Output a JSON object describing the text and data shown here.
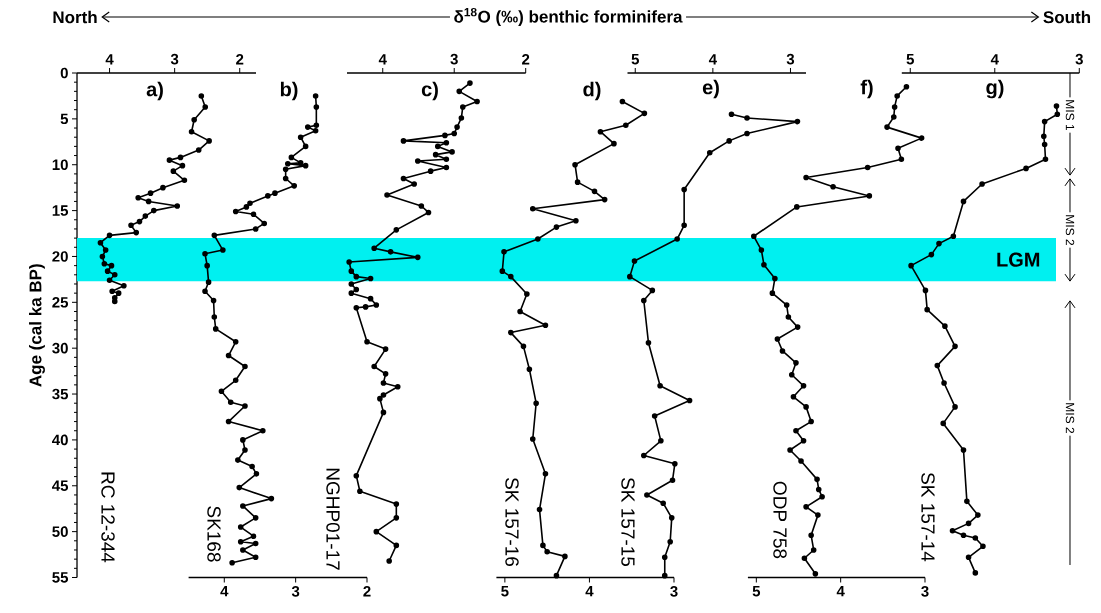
{
  "chart_data": [
    {
      "type": "line",
      "title": "a)",
      "annotations": [
        "δ$^{18}$O (‰) benthic forminifera",
        "North",
        "South"
      ],
      "ylabel": "Age (cal ka BP)",
      "xlim": [
        4.5,
        1.75
      ],
      "xticks": [
        4,
        3,
        2
      ],
      "ylim": [
        55,
        0
      ],
      "yticks": [
        0,
        5,
        10,
        15,
        20,
        25,
        30,
        35,
        40,
        45,
        50,
        55
      ],
      "marker": "circle",
      "line_style": "solid",
      "bands": [
        {
          "axis": "y",
          "from": 18,
          "to": 22.7,
          "label": "LGM",
          "color": "#00f0f0"
        }
      ],
      "series": [
        {
          "name": "RC 12-344",
          "color": "#000000",
          "x": [
            2.59,
            2.53,
            2.7,
            2.74,
            2.47,
            2.63,
            2.91,
            3.08,
            2.88,
            3.02,
            2.85,
            3.18,
            3.37,
            3.56,
            3.4,
            2.96,
            3.32,
            3.45,
            3.54,
            3.67,
            3.59,
            4.0,
            4.14,
            4.06,
            4.11,
            4.08,
            3.97,
            4.03,
            3.92,
            4.0,
            3.78,
            3.96,
            3.86,
            3.92,
            3.92
          ],
          "values": [
            2.5,
            3.7,
            5.1,
            6.4,
            7.4,
            8.4,
            9.2,
            9.5,
            10.1,
            10.7,
            11.7,
            12.5,
            13.1,
            13.6,
            14.0,
            14.5,
            15.0,
            15.6,
            16.2,
            16.6,
            17.4,
            17.7,
            18.5,
            19.3,
            20.0,
            20.8,
            21.0,
            21.6,
            22.0,
            22.6,
            23.2,
            23.8,
            24.0,
            24.5,
            24.9
          ]
        }
      ]
    },
    {
      "type": "line",
      "title": "b)",
      "xlim": [
        4.5,
        2
      ],
      "xticks": [
        4,
        3,
        2
      ],
      "ylim": [
        55,
        0
      ],
      "tick_labels": "x",
      "marker": "circle",
      "line_style": "solid",
      "series": [
        {
          "name": "SK168",
          "color": "#000000",
          "x": [
            2.72,
            2.71,
            2.71,
            2.83,
            2.72,
            2.93,
            2.86,
            3.06,
            2.93,
            3.11,
            2.86,
            3.14,
            3.14,
            3.02,
            3.29,
            3.39,
            3.64,
            3.69,
            3.84,
            3.59,
            3.44,
            3.56,
            4.14,
            4.02,
            4.27,
            4.24,
            4.22,
            4.27,
            4.15,
            4.14,
            4.12,
            3.84,
            3.94,
            3.71,
            3.84,
            4.04,
            3.91,
            3.71,
            3.94,
            3.46,
            3.74,
            3.71,
            3.81,
            3.61,
            3.55,
            3.79,
            3.34,
            3.74,
            3.56,
            3.77,
            3.59,
            3.77,
            3.56,
            3.74,
            3.56,
            3.89
          ],
          "values": [
            2.5,
            3.7,
            5.7,
            5.9,
            6.3,
            7.0,
            8.0,
            9.2,
            9.8,
            9.9,
            10.1,
            10.5,
            11.5,
            12.3,
            13.1,
            13.4,
            14.2,
            14.6,
            15.1,
            15.4,
            16.4,
            17.0,
            17.7,
            19.3,
            19.7,
            21.0,
            22.8,
            23.8,
            24.8,
            26.6,
            27.9,
            29.3,
            30.8,
            32.0,
            33.5,
            34.7,
            35.9,
            36.3,
            38.0,
            39.0,
            40.0,
            41.1,
            42.2,
            42.9,
            43.7,
            45.2,
            46.4,
            47.2,
            48.5,
            49.5,
            50.5,
            51.1,
            51.3,
            52.0,
            52.8,
            53.4
          ]
        }
      ]
    },
    {
      "type": "line",
      "title": "c)",
      "xlim": [
        4.5,
        2
      ],
      "xticks": [
        4,
        3,
        2
      ],
      "ylim": [
        55,
        0
      ],
      "tick_labels": "x",
      "marker": "circle",
      "line_style": "solid",
      "series": [
        {
          "name": "NGHP01-17",
          "color": "#000000",
          "x": [
            2.78,
            2.93,
            2.68,
            2.88,
            2.9,
            2.96,
            3.0,
            3.13,
            3.71,
            3.11,
            3.23,
            3.03,
            3.26,
            3.11,
            3.51,
            3.11,
            3.33,
            3.71,
            3.56,
            3.94,
            3.46,
            3.36,
            3.81,
            4.12,
            3.89,
            3.51,
            4.47,
            4.44,
            4.37,
            4.17,
            4.44,
            4.37,
            4.44,
            4.17,
            4.09,
            4.24,
            4.37,
            4.22,
            3.96,
            4.12,
            3.96,
            3.99,
            3.79,
            3.99,
            4.04,
            3.99,
            4.37,
            4.32,
            3.81,
            3.81,
            4.09,
            3.81,
            3.91
          ],
          "values": [
            1.1,
            2.0,
            3.1,
            3.7,
            4.9,
            5.9,
            6.6,
            6.8,
            7.4,
            7.6,
            8.0,
            8.6,
            8.9,
            9.4,
            9.6,
            10.3,
            10.7,
            11.5,
            12.1,
            13.3,
            14.5,
            15.2,
            17.1,
            19.1,
            19.5,
            20.1,
            20.6,
            21.6,
            22.2,
            22.4,
            23.0,
            23.6,
            24.0,
            24.6,
            25.3,
            25.5,
            25.6,
            29.3,
            30.1,
            32.0,
            32.8,
            33.8,
            34.2,
            35.1,
            35.5,
            37.0,
            43.9,
            45.6,
            47.0,
            48.5,
            50.0,
            51.5,
            53.2
          ]
        }
      ]
    },
    {
      "type": "line",
      "title": "d)",
      "xlim": [
        5.1,
        3
      ],
      "xticks": [
        5,
        4,
        3
      ],
      "ylim": [
        55,
        0
      ],
      "tick_labels": "x",
      "marker": "circle",
      "line_style": "solid",
      "series": [
        {
          "name": "SK 157-16",
          "color": "#000000",
          "x": [
            3.61,
            3.35,
            3.57,
            3.87,
            3.71,
            4.17,
            4.14,
            3.94,
            3.82,
            4.67,
            4.16,
            4.39,
            4.61,
            5.01,
            5.03,
            4.93,
            4.74,
            4.82,
            4.52,
            4.93,
            4.78,
            4.71,
            4.63,
            4.67,
            4.52,
            4.59,
            4.55,
            4.5,
            4.29,
            4.39
          ],
          "values": [
            3.1,
            4.4,
            5.7,
            6.4,
            7.7,
            10.0,
            11.9,
            12.9,
            13.8,
            14.8,
            16.1,
            16.8,
            18.1,
            19.5,
            21.6,
            22.2,
            24.1,
            26.0,
            27.5,
            28.3,
            29.8,
            32.3,
            36.0,
            39.9,
            43.7,
            47.6,
            51.5,
            52.2,
            52.7,
            54.8
          ]
        }
      ]
    },
    {
      "type": "line",
      "title": "e)",
      "xlim": [
        5.1,
        2.8
      ],
      "xticks": [
        5,
        4,
        3
      ],
      "ylim": [
        55,
        0
      ],
      "tick_labels": "x",
      "marker": "circle",
      "line_style": "solid",
      "series": [
        {
          "name": "SK 157-15",
          "color": "#000000",
          "x": [
            3.76,
            3.56,
            2.91,
            3.56,
            3.79,
            4.04,
            4.37,
            4.37,
            4.46,
            5.01,
            5.07,
            4.78,
            4.89,
            4.83,
            4.68,
            4.3,
            4.75,
            4.67,
            4.89,
            4.49,
            4.52,
            4.85,
            4.64,
            4.53,
            4.55,
            4.62,
            4.62
          ],
          "values": [
            4.5,
            4.9,
            5.3,
            6.6,
            7.4,
            8.7,
            12.7,
            16.6,
            18.1,
            20.5,
            22.2,
            23.7,
            24.8,
            29.4,
            34.1,
            35.7,
            37.4,
            40.1,
            41.7,
            42.6,
            44.4,
            46.0,
            46.9,
            48.5,
            51.1,
            52.8,
            54.8
          ]
        }
      ]
    },
    {
      "type": "line",
      "title": "f)",
      "xlim": [
        5.1,
        3
      ],
      "xticks": [
        5,
        4,
        3
      ],
      "ylim": [
        55,
        0
      ],
      "tick_labels": "x",
      "marker": "circle",
      "line_style": "solid",
      "series": [
        {
          "name": "ODP 758",
          "color": "#000000",
          "x": [
            3.22,
            3.33,
            3.36,
            3.37,
            3.45,
            3.04,
            3.32,
            3.28,
            3.68,
            4.41,
            4.09,
            3.66,
            4.52,
            5.03,
            4.94,
            4.91,
            4.78,
            4.81,
            4.64,
            4.62,
            4.51,
            4.75,
            4.69,
            4.53,
            4.58,
            4.44,
            4.56,
            4.41,
            4.35,
            4.53,
            4.44,
            4.6,
            4.47,
            4.28,
            4.26,
            4.22,
            4.41,
            4.27,
            4.35,
            4.32,
            4.43,
            4.3
          ],
          "values": [
            1.5,
            2.5,
            3.7,
            4.8,
            5.9,
            7.1,
            8.2,
            9.4,
            10.3,
            11.4,
            12.4,
            13.4,
            14.6,
            17.8,
            19.3,
            20.9,
            22.4,
            24.0,
            25.3,
            26.6,
            27.7,
            29.0,
            30.3,
            31.6,
            32.9,
            34.1,
            35.3,
            36.4,
            38.0,
            39.0,
            40.1,
            41.1,
            42.3,
            44.3,
            45.4,
            46.2,
            47.3,
            48.2,
            50.4,
            52.0,
            52.9,
            54.6
          ]
        }
      ]
    },
    {
      "type": "line",
      "title": "g)",
      "xlim": [
        5.1,
        3
      ],
      "xticks": [
        5,
        4,
        3
      ],
      "ylim": [
        55,
        0
      ],
      "tick_labels": "x",
      "marker": "circle",
      "line_style": "solid",
      "annotations": [
        "MIS 1",
        "MIS 2",
        "MIS 2"
      ],
      "series": [
        {
          "name": "SK 157-14",
          "color": "#000000",
          "x": [
            3.27,
            3.26,
            3.41,
            3.42,
            3.41,
            3.4,
            3.63,
            4.15,
            4.37,
            4.49,
            4.66,
            4.75,
            4.99,
            4.82,
            4.8,
            4.59,
            4.47,
            4.68,
            4.6,
            4.47,
            4.61,
            4.37,
            4.33,
            4.2,
            4.31,
            4.5,
            4.37,
            4.23,
            4.14,
            4.31,
            4.23
          ],
          "values": [
            3.6,
            4.5,
            5.3,
            6.9,
            7.8,
            9.4,
            10.4,
            12.1,
            14.0,
            17.8,
            18.6,
            19.8,
            21.0,
            23.7,
            25.8,
            27.6,
            29.8,
            31.9,
            33.8,
            36.4,
            38.2,
            41.1,
            46.7,
            48.2,
            49.1,
            49.9,
            50.4,
            50.7,
            51.6,
            52.8,
            54.5
          ]
        }
      ]
    }
  ]
}
